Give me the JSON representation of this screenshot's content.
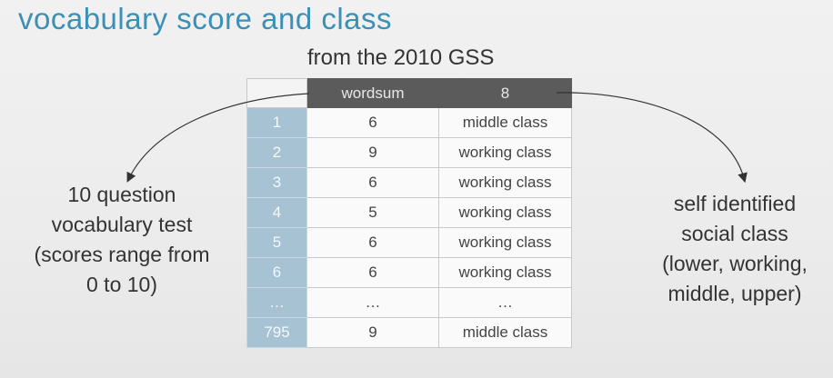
{
  "title": "vocabulary score and class",
  "subtitle": "from the 2010 GSS",
  "table": {
    "columns": [
      "",
      "wordsum",
      "8"
    ],
    "rows": [
      {
        "index": "1",
        "wordsum": "6",
        "class": "middle class"
      },
      {
        "index": "2",
        "wordsum": "9",
        "class": "working class"
      },
      {
        "index": "3",
        "wordsum": "6",
        "class": "working class"
      },
      {
        "index": "4",
        "wordsum": "5",
        "class": "working class"
      },
      {
        "index": "5",
        "wordsum": "6",
        "class": "working class"
      },
      {
        "index": "6",
        "wordsum": "6",
        "class": "working class"
      },
      {
        "index": "…",
        "wordsum": "…",
        "class": "…"
      },
      {
        "index": "795",
        "wordsum": "9",
        "class": "middle class"
      }
    ]
  },
  "left_note": {
    "lines": [
      "10 question",
      "vocabulary test",
      "(scores range from",
      "0 to 10)"
    ]
  },
  "right_note": {
    "lines": [
      "self identified",
      "social class",
      "(lower, working,",
      "middle, upper)"
    ]
  },
  "colors": {
    "title": "#3c8fb5",
    "header_bg": "#5b5b5b",
    "index_bg": "#a7c3d3"
  }
}
